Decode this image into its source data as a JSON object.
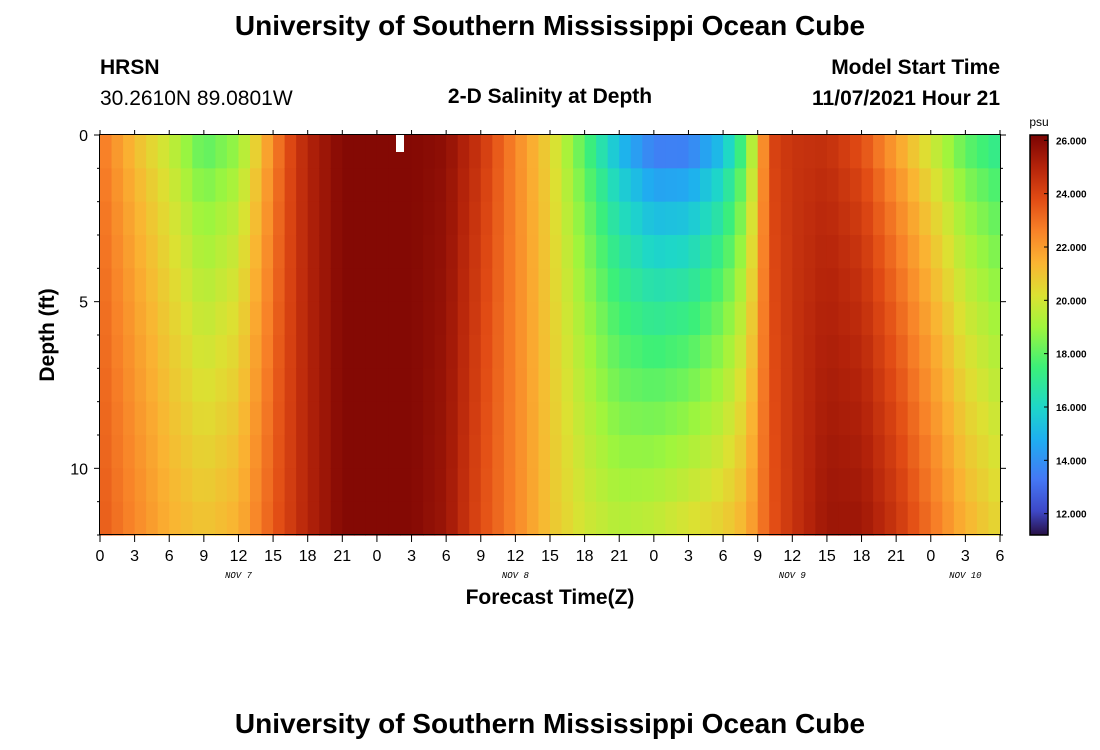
{
  "header": {
    "title": "University of Southern Mississippi Ocean Cube",
    "station": "HRSN",
    "coords": "30.2610N  89.0801W",
    "subtitle": "2-D Salinity at Depth",
    "start_label": "Model Start Time",
    "start_value": "11/07/2021 Hour 21"
  },
  "footer": {
    "title": "University of Southern Mississippi Ocean Cube"
  },
  "chart_data": {
    "type": "heatmap",
    "title": "2-D Salinity at Depth",
    "xlabel": "Forecast Time(Z)",
    "ylabel": "Depth (ft)",
    "xlim": [
      0,
      78
    ],
    "ylim": [
      0,
      12
    ],
    "x_tick_hours": [
      0,
      3,
      6,
      9,
      12,
      15,
      18,
      21,
      24,
      27,
      30,
      33,
      36,
      39,
      42,
      45,
      48,
      51,
      54,
      57,
      60,
      63,
      66,
      69,
      72,
      75,
      78
    ],
    "x_tick_labels": [
      "0",
      "3",
      "6",
      "9",
      "12",
      "15",
      "18",
      "21",
      "0",
      "3",
      "6",
      "9",
      "12",
      "15",
      "18",
      "21",
      "0",
      "3",
      "6",
      "9",
      "12",
      "15",
      "18",
      "21",
      "0",
      "3",
      "6"
    ],
    "date_labels": [
      {
        "label": "NOV 7",
        "hour": 12
      },
      {
        "label": "NOV 8",
        "hour": 36
      },
      {
        "label": "NOV 9",
        "hour": 60
      },
      {
        "label": "NOV 10",
        "hour": 75
      }
    ],
    "y_ticks": [
      0,
      5,
      10
    ],
    "y_tick_labels": [
      "0",
      "5",
      "10"
    ],
    "colorbar": {
      "unit": "psu",
      "min": 11.2,
      "max": 26.2,
      "ticks": [
        12,
        14,
        16,
        18,
        20,
        22,
        24,
        26
      ],
      "tick_labels": [
        "12.000",
        "14.000",
        "16.000",
        "18.000",
        "20.000",
        "22.000",
        "24.000",
        "26.000"
      ]
    },
    "n_time_steps": 78,
    "depth_levels": 12,
    "surface_keyframes": [
      [
        0,
        22.8
      ],
      [
        3,
        21
      ],
      [
        6,
        19.5
      ],
      [
        9,
        17.5
      ],
      [
        12,
        18.5
      ],
      [
        14,
        21
      ],
      [
        16,
        23.5
      ],
      [
        18,
        25
      ],
      [
        21,
        26
      ],
      [
        24,
        26
      ],
      [
        27,
        26
      ],
      [
        30,
        25.8
      ],
      [
        33,
        24.5
      ],
      [
        36,
        22.5
      ],
      [
        39,
        20.5
      ],
      [
        42,
        17.5
      ],
      [
        45,
        14.5
      ],
      [
        48,
        12.5
      ],
      [
        51,
        12.5
      ],
      [
        54,
        14.5
      ],
      [
        56,
        17.5
      ],
      [
        57,
        20.5
      ],
      [
        58,
        24
      ],
      [
        60,
        24.5
      ],
      [
        63,
        24.5
      ],
      [
        66,
        23.5
      ],
      [
        69,
        21.5
      ],
      [
        72,
        19.5
      ],
      [
        75,
        17.5
      ],
      [
        78,
        16.5
      ]
    ],
    "bottom_keyframes": [
      [
        0,
        23.5
      ],
      [
        3,
        22.5
      ],
      [
        6,
        21.5
      ],
      [
        9,
        21
      ],
      [
        12,
        21.5
      ],
      [
        15,
        23.5
      ],
      [
        18,
        25
      ],
      [
        21,
        26
      ],
      [
        24,
        26
      ],
      [
        27,
        26
      ],
      [
        30,
        25.5
      ],
      [
        33,
        23.8
      ],
      [
        36,
        22.5
      ],
      [
        39,
        21
      ],
      [
        42,
        20
      ],
      [
        45,
        19.5
      ],
      [
        48,
        19.8
      ],
      [
        51,
        20.3
      ],
      [
        54,
        20.8
      ],
      [
        56,
        21.5
      ],
      [
        57,
        22.5
      ],
      [
        58,
        23.5
      ],
      [
        60,
        24.5
      ],
      [
        63,
        25.5
      ],
      [
        66,
        25.5
      ],
      [
        69,
        24.5
      ],
      [
        72,
        23
      ],
      [
        75,
        21.5
      ],
      [
        78,
        20.5
      ]
    ],
    "depth_shape": 1.6,
    "max_depth_level": 11
  }
}
